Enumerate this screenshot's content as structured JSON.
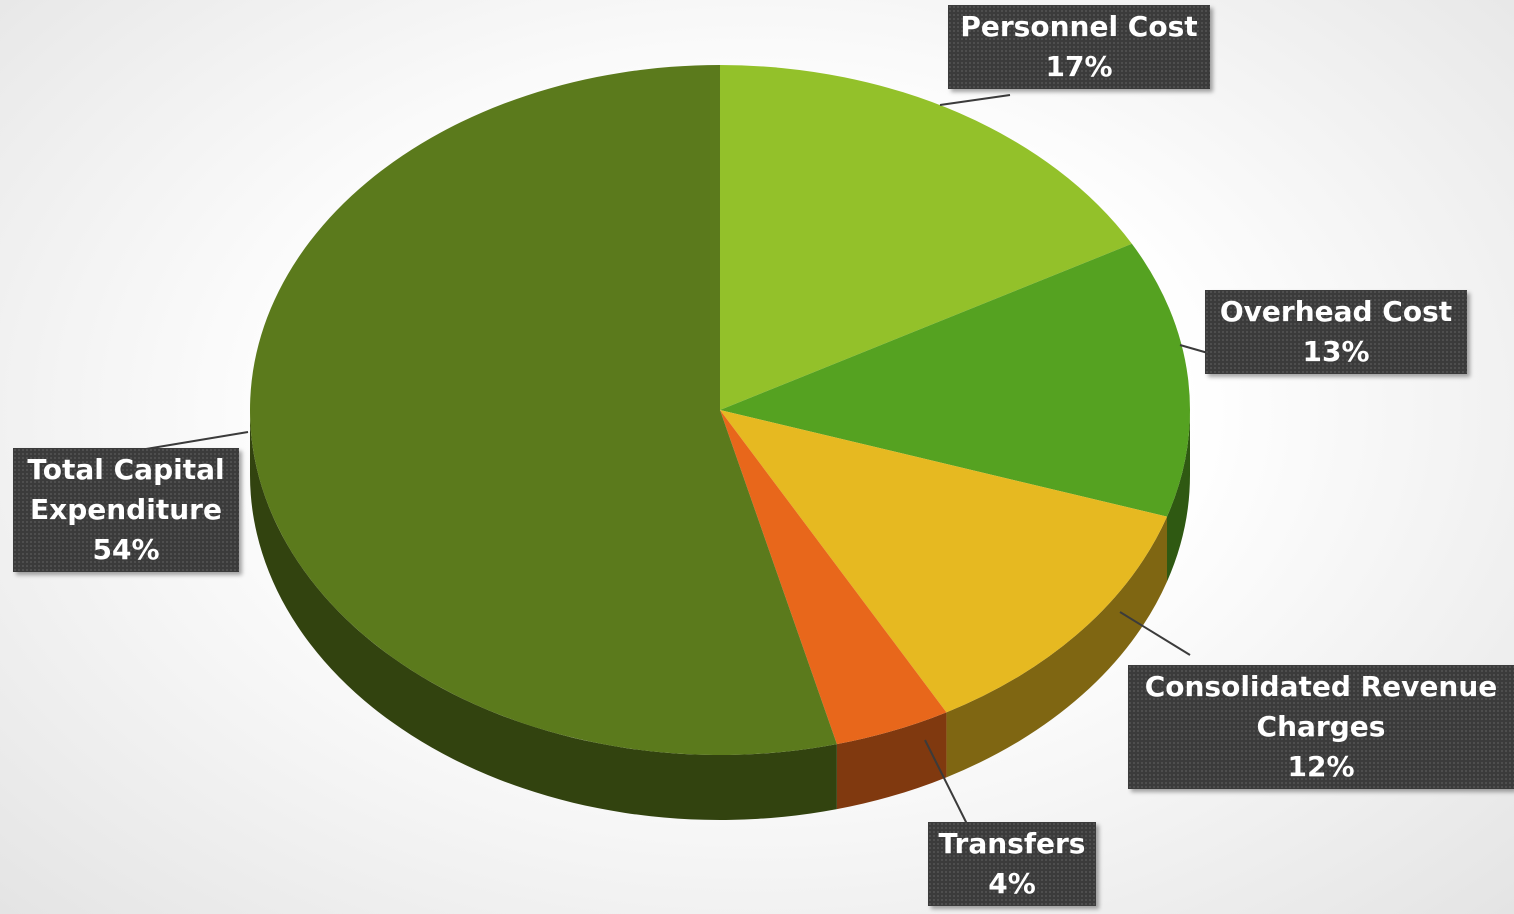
{
  "chart_data": {
    "type": "pie",
    "categories": [
      "Personnel Cost",
      "Overhead Cost",
      "Consolidated Revenue Charges",
      "Transfers",
      "Total Capital Expenditure"
    ],
    "values": [
      17,
      13,
      12,
      4,
      54
    ],
    "value_labels": [
      "17%",
      "13%",
      "12%",
      "4%",
      "54%"
    ],
    "colors": [
      "#93c12a",
      "#55a221",
      "#e6b921",
      "#e8671b",
      "#5b7a1c"
    ]
  }
}
